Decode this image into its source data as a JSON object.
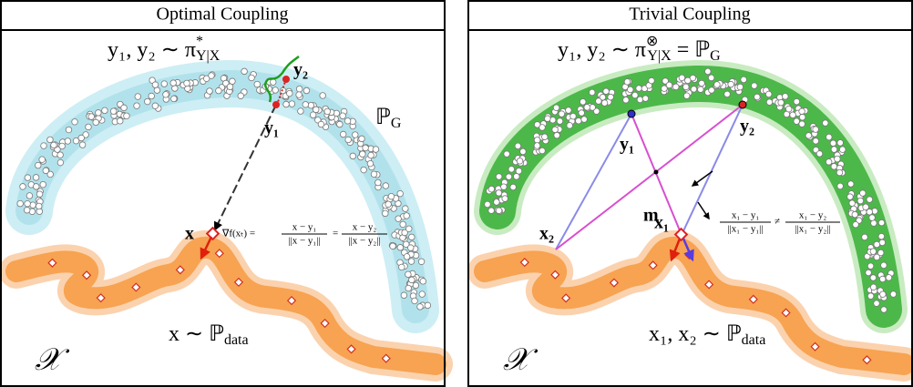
{
  "panels": [
    {
      "title": "Optimal Coupling",
      "coupling": {
        "lhs": "y₁, y₂ ∼ π",
        "sup": "*",
        "sub": "Y|X"
      },
      "target": {
        "symbol": "ℙ",
        "sub": "G"
      },
      "points": [
        "y₁",
        "y₂",
        "x"
      ],
      "gradient": {
        "lhs": "∇f(xₜ) =",
        "fractions": [
          {
            "num": "x − y₁",
            "den": "||x − y₁||"
          },
          {
            "num": "x − y₂",
            "den": "||x − y₂||"
          }
        ],
        "relation": "="
      },
      "source": {
        "lhs": "x ∼ ℙ",
        "sub": "data"
      },
      "space": "𝒳"
    },
    {
      "title": "Trivial Coupling",
      "coupling": {
        "lhs": "y₁, y₂ ∼ π",
        "sup": "⊗",
        "sub": "Y|X",
        "rhs": " = ℙ",
        "rhs_sub": "G"
      },
      "points": [
        "y₁",
        "y₂",
        "m",
        "x₁",
        "x₂"
      ],
      "inequality": {
        "fractions": [
          {
            "num": "x₁ − y₁",
            "den": "||x₁ − y₁||"
          },
          {
            "num": "x₁ − y₂",
            "den": "||x₁ − y₂||"
          }
        ],
        "relation": "≠"
      },
      "source": {
        "lhs": "x₁, x₂ ∼ ℙ",
        "sub": "data"
      },
      "space": "𝒳"
    }
  ]
}
